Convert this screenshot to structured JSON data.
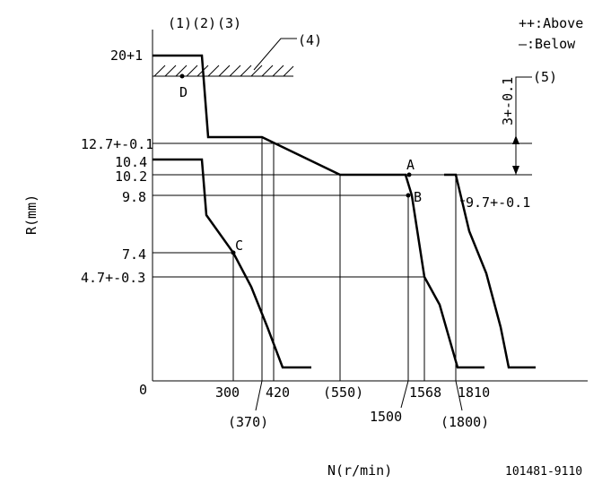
{
  "legend": {
    "above": "++:Above",
    "below": "—:Below"
  },
  "callouts": [
    "(1)",
    "(2)",
    "(3)",
    "(4)",
    "(5)"
  ],
  "r_labels": {
    "r20": "20+1",
    "r127": "12.7+-0.1",
    "r104": "10.4",
    "r102": "10.2",
    "r98": "9.8",
    "r74": "7.4",
    "r47": "4.7+-0.3",
    "zero": "0"
  },
  "n_labels": {
    "n300": "300",
    "n370": "(370)",
    "n420": "420",
    "n550": "(550)",
    "n1500": "1500",
    "n1568": "1568",
    "n1800": "(1800)",
    "n1810": "1810"
  },
  "annotations": {
    "dim5": "3+-0.1",
    "r97": "9.7+-0.1"
  },
  "points": {
    "a": "A",
    "b": "B",
    "c": "C",
    "d": "D"
  },
  "axes": {
    "ylabel": "R(mm)",
    "xlabel": "N(r/min)"
  },
  "part_number": "101481-9110"
}
